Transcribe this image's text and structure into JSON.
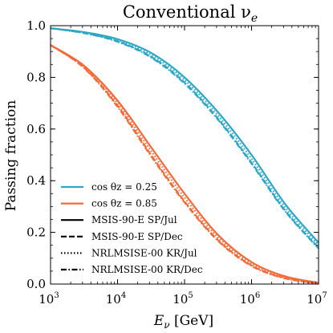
{
  "chart_data": {
    "type": "line",
    "title": "Conventional ν",
    "title_sub": "e",
    "xlabel": "E",
    "xlabel_sub": "ν",
    "xlabel_unit": "[GeV]",
    "ylabel": "Passing fraction",
    "xscale": "log",
    "xlim": [
      1000,
      10000000
    ],
    "ylim": [
      0.0,
      1.0
    ],
    "x_ticks": [
      {
        "base": "10",
        "exp": "3"
      },
      {
        "base": "10",
        "exp": "4"
      },
      {
        "base": "10",
        "exp": "5"
      },
      {
        "base": "10",
        "exp": "6"
      },
      {
        "base": "10",
        "exp": "7"
      }
    ],
    "y_ticks": [
      "0.0",
      "0.2",
      "0.4",
      "0.6",
      "0.8",
      "1.0"
    ],
    "grid": false,
    "legend": {
      "placement": "lower-left",
      "color_entries": [
        {
          "label": "cos θz = 0.25",
          "color": "#2ea6c4"
        },
        {
          "label": "cos θz = 0.85",
          "color": "#f26b3a"
        }
      ],
      "style_entries": [
        {
          "label": "MSIS-90-E SP/Jul",
          "dash": "solid"
        },
        {
          "label": "MSIS-90-E SP/Dec",
          "dash": "dashed"
        },
        {
          "label": "NRLMSISE-00 KR/Jul",
          "dash": "dotted"
        },
        {
          "label": "NRLMSISE-00 KR/Dec",
          "dash": "dashdot"
        }
      ]
    },
    "x": [
      1000,
      3162,
      10000,
      31623,
      100000,
      316228,
      1000000,
      3162278,
      10000000
    ],
    "series": [
      {
        "name": "cos θz = 0.25",
        "model": "MSIS-90-E SP/Jul",
        "color": "#2ea6c4",
        "dash": "solid",
        "values": [
          0.99,
          0.975,
          0.948,
          0.895,
          0.8,
          0.665,
          0.5,
          0.31,
          0.16
        ]
      },
      {
        "name": "cos θz = 0.25",
        "model": "MSIS-90-E SP/Dec",
        "color": "#2ea6c4",
        "dash": "dashed",
        "values": [
          0.99,
          0.972,
          0.94,
          0.88,
          0.78,
          0.64,
          0.47,
          0.285,
          0.14
        ]
      },
      {
        "name": "cos θz = 0.25",
        "model": "NRLMSISE-00 KR/Jul",
        "color": "#2ea6c4",
        "dash": "dotted",
        "values": [
          0.99,
          0.974,
          0.944,
          0.887,
          0.79,
          0.652,
          0.485,
          0.297,
          0.15
        ]
      },
      {
        "name": "cos θz = 0.25",
        "model": "NRLMSISE-00 KR/Dec",
        "color": "#2ea6c4",
        "dash": "dashdot",
        "values": [
          0.99,
          0.971,
          0.938,
          0.877,
          0.776,
          0.636,
          0.466,
          0.282,
          0.138
        ]
      },
      {
        "name": "cos θz = 0.85",
        "model": "MSIS-90-E SP/Jul",
        "color": "#f26b3a",
        "dash": "solid",
        "values": [
          0.925,
          0.845,
          0.71,
          0.53,
          0.35,
          0.19,
          0.085,
          0.03,
          0.005
        ]
      },
      {
        "name": "cos θz = 0.85",
        "model": "MSIS-90-E SP/Dec",
        "color": "#f26b3a",
        "dash": "dashed",
        "values": [
          0.925,
          0.838,
          0.69,
          0.5,
          0.32,
          0.17,
          0.072,
          0.023,
          0.003
        ]
      },
      {
        "name": "cos θz = 0.85",
        "model": "NRLMSISE-00 KR/Jul",
        "color": "#f26b3a",
        "dash": "dotted",
        "values": [
          0.925,
          0.841,
          0.7,
          0.515,
          0.335,
          0.18,
          0.078,
          0.026,
          0.004
        ]
      },
      {
        "name": "cos θz = 0.85",
        "model": "NRLMSISE-00 KR/Dec",
        "color": "#f26b3a",
        "dash": "dashdot",
        "values": [
          0.925,
          0.836,
          0.686,
          0.495,
          0.316,
          0.167,
          0.07,
          0.022,
          0.003
        ]
      }
    ]
  }
}
